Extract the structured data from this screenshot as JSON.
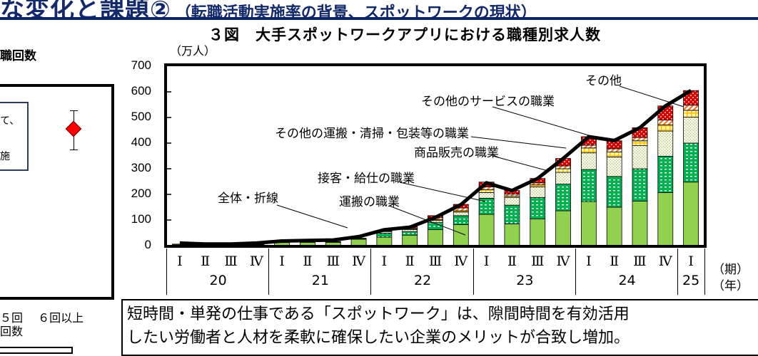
{
  "header": {
    "title": "な変化と課題②",
    "subtitle": "（転職活動実施率の背景、スポットワークの現状）",
    "color": "#13296a"
  },
  "left_panel": {
    "title_fragment": "職回数",
    "note_lines": [
      "て、",
      "",
      "施"
    ],
    "axis_labels": "５回　 ６回以上",
    "axis_title_fragment": "回数",
    "marker_color": "#ff0000"
  },
  "chart_data": {
    "type": "bar",
    "stacked": true,
    "title": "３図　大手スポットワークアプリにおける職種別求人数",
    "ylabel": "（万人）",
    "xlabel_period": "（期）",
    "xlabel_year": "（年）",
    "ylim": [
      0,
      700
    ],
    "yticks": [
      0,
      100,
      200,
      300,
      400,
      500,
      600,
      700
    ],
    "categories": [
      "20-I",
      "20-II",
      "20-III",
      "20-IV",
      "21-I",
      "21-II",
      "21-III",
      "21-IV",
      "22-I",
      "22-II",
      "22-III",
      "22-IV",
      "23-I",
      "23-II",
      "23-III",
      "23-IV",
      "24-I",
      "24-II",
      "24-III",
      "24-IV",
      "25-I"
    ],
    "quarter_labels": [
      "Ⅰ",
      "Ⅱ",
      "Ⅲ",
      "Ⅳ",
      "Ⅰ",
      "Ⅱ",
      "Ⅲ",
      "Ⅳ",
      "Ⅰ",
      "Ⅱ",
      "Ⅲ",
      "Ⅳ",
      "Ⅰ",
      "Ⅱ",
      "Ⅲ",
      "Ⅳ",
      "Ⅰ",
      "Ⅱ",
      "Ⅲ",
      "Ⅳ",
      "Ⅰ"
    ],
    "years": [
      {
        "label": "20",
        "span": 4
      },
      {
        "label": "21",
        "span": 4
      },
      {
        "label": "22",
        "span": 4
      },
      {
        "label": "23",
        "span": 4
      },
      {
        "label": "24",
        "span": 4
      },
      {
        "label": "25",
        "span": 1
      }
    ],
    "series": [
      {
        "name": "運搬の職業",
        "color": "#92d050",
        "pattern": "solid",
        "values": [
          5,
          2,
          2,
          4,
          12,
          13,
          13,
          25,
          33,
          41,
          63,
          82,
          122,
          85,
          104,
          136,
          172,
          150,
          174,
          207,
          248
        ]
      },
      {
        "name": "接客・給仕の職業",
        "color": "#00b050",
        "pattern": "dots",
        "values": [
          1,
          0,
          0,
          1,
          2,
          2,
          2,
          3,
          16,
          14,
          27,
          35,
          63,
          73,
          84,
          104,
          125,
          120,
          126,
          142,
          152
        ]
      },
      {
        "name": "商品販売の職業",
        "color": "#e8ecc8",
        "pattern": "speckle",
        "values": [
          0,
          0,
          0,
          0,
          1,
          1,
          1,
          1,
          6,
          8,
          8,
          14,
          22,
          30,
          41,
          46,
          65,
          76,
          90,
          98,
          101
        ]
      },
      {
        "name": "その他の運搬・清掃・包装等の職業",
        "color": "#ffc000",
        "pattern": "grid",
        "values": [
          0,
          0,
          0,
          0,
          0,
          0,
          0,
          0,
          2,
          3,
          4,
          5,
          11,
          5,
          8,
          14,
          19,
          19,
          19,
          24,
          27
        ]
      },
      {
        "name": "その他のサービスの職業",
        "color": "#f4a460",
        "pattern": "diagonal",
        "values": [
          0,
          0,
          0,
          0,
          0,
          0,
          0,
          0,
          2,
          3,
          7,
          11,
          11,
          8,
          8,
          11,
          11,
          13,
          13,
          19,
          20
        ]
      },
      {
        "name": "その他",
        "color": "#c00000",
        "pattern": "dots-white",
        "values": [
          0,
          0,
          0,
          0,
          0,
          0,
          0,
          0,
          1,
          5,
          8,
          14,
          19,
          14,
          17,
          29,
          33,
          31,
          38,
          55,
          57
        ]
      }
    ],
    "line": {
      "name": "全体・折線",
      "values": [
        10,
        6,
        6,
        10,
        18,
        20,
        22,
        35,
        62,
        72,
        110,
        160,
        245,
        215,
        262,
        340,
        425,
        410,
        460,
        545,
        605
      ]
    },
    "annotations": [
      {
        "text": "その他"
      },
      {
        "text": "その他のサービスの職業"
      },
      {
        "text": "その他の運搬・清掃・包装等の職業"
      },
      {
        "text": "商品販売の職業"
      },
      {
        "text": "接客・給仕の職業"
      },
      {
        "text": "全体・折線"
      },
      {
        "text": "運搬の職業"
      }
    ]
  },
  "summary": {
    "line1": "短時間・単発の仕事である「スポットワーク」は、隙間時間を有効活用",
    "line2": "したい労働者と人材を柔軟に確保したい企業のメリットが合致し増加。"
  }
}
